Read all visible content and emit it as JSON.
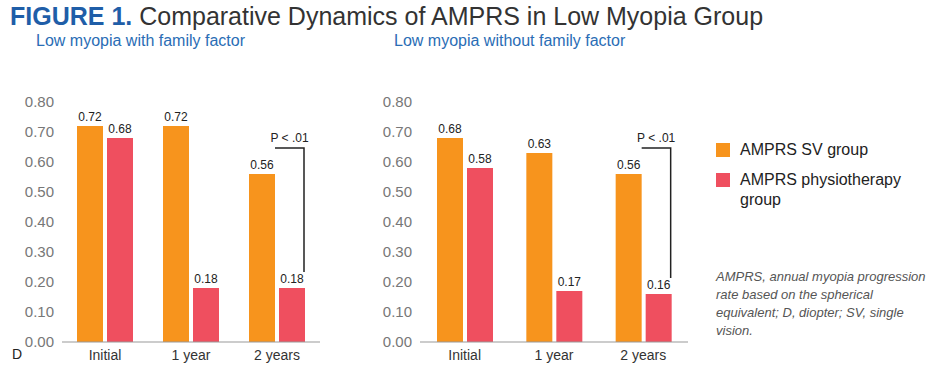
{
  "figure_label": "FIGURE 1.",
  "title": "Comparative Dynamics of AMPRS in Low Myopia Group",
  "note": "AMPRS, annual myopia progression rate based on the spherical equivalent; D, diopter; SV, single vision.",
  "chart_data": [
    {
      "type": "bar",
      "title": "Low myopia with family factor",
      "y_label": "D",
      "categories": [
        "Initial",
        "1 year",
        "2 years"
      ],
      "series": [
        {
          "name": "AMPRS SV group",
          "color": "#f7941d",
          "values": [
            0.72,
            0.72,
            0.56
          ]
        },
        {
          "name": "AMPRS physiotherapy group",
          "color": "#ef4f5f",
          "values": [
            0.68,
            0.18,
            0.18
          ]
        }
      ],
      "ylim": [
        0,
        0.8
      ],
      "yticks": [
        {
          "value": 0,
          "label": "0.00"
        },
        {
          "value": 0.1,
          "label": "0.10"
        },
        {
          "value": 0.2,
          "label": "0.20"
        },
        {
          "value": 0.3,
          "label": "0.30"
        },
        {
          "value": 0.4,
          "label": "0.40"
        },
        {
          "value": 0.5,
          "label": "0.50"
        },
        {
          "value": 0.6,
          "label": "0.60"
        },
        {
          "value": 0.7,
          "label": "0.70"
        },
        {
          "value": 0.8,
          "label": "0.80"
        }
      ],
      "grid": false,
      "data_labels": true,
      "legend": "right",
      "annotations": [
        {
          "text": "P < .01",
          "category": "2 years"
        }
      ]
    },
    {
      "type": "bar",
      "title": "Low myopia without family factor",
      "categories": [
        "Initial",
        "1 year",
        "2 years"
      ],
      "series": [
        {
          "name": "AMPRS SV group",
          "color": "#f7941d",
          "values": [
            0.68,
            0.63,
            0.56
          ]
        },
        {
          "name": "AMPRS physiotherapy group",
          "color": "#ef4f5f",
          "values": [
            0.58,
            0.17,
            0.16
          ]
        }
      ],
      "ylim": [
        0,
        0.8
      ],
      "yticks": [
        {
          "value": 0,
          "label": "0.00"
        },
        {
          "value": 0.1,
          "label": "0.10"
        },
        {
          "value": 0.2,
          "label": "0.20"
        },
        {
          "value": 0.3,
          "label": "0.30"
        },
        {
          "value": 0.4,
          "label": "0.40"
        },
        {
          "value": 0.5,
          "label": "0.50"
        },
        {
          "value": 0.6,
          "label": "0.60"
        },
        {
          "value": 0.7,
          "label": "0.70"
        },
        {
          "value": 0.8,
          "label": "0.80"
        }
      ],
      "grid": false,
      "data_labels": true,
      "annotations": [
        {
          "text": "P < .01",
          "category": "2 years"
        }
      ]
    }
  ]
}
